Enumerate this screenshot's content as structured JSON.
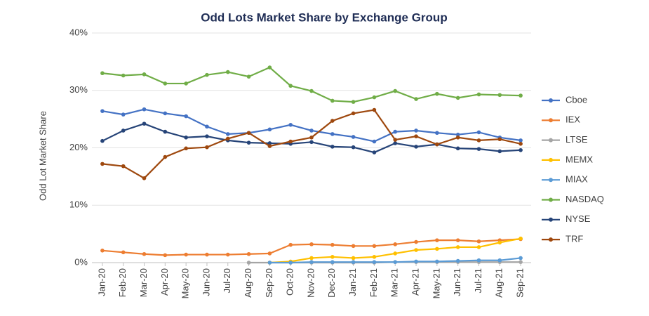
{
  "chart_data": {
    "type": "line",
    "title": "Odd Lots Market Share by Exchange Group",
    "y_label": "Odd Lot Market Share",
    "categories": [
      "Jan-20",
      "Feb-20",
      "Mar-20",
      "Apr-20",
      "May-20",
      "Jun-20",
      "Jul-20",
      "Aug-20",
      "Sep-20",
      "Oct-20",
      "Nov-20",
      "Dec-20",
      "Jan-21",
      "Feb-21",
      "Mar-21",
      "Apr-21",
      "May-21",
      "Jun-21",
      "Jul-21",
      "Aug-21",
      "Sep-21"
    ],
    "ylim": [
      0,
      40
    ],
    "yticks": [
      {
        "value": 0,
        "label": "0%"
      },
      {
        "value": 10,
        "label": "10%"
      },
      {
        "value": 20,
        "label": "20%"
      },
      {
        "value": 30,
        "label": "30%"
      },
      {
        "value": 40,
        "label": "40%"
      }
    ],
    "grid": true,
    "legend": "right",
    "series": [
      {
        "name": "Cboe",
        "color": "#4472c4",
        "values": [
          26.4,
          25.8,
          26.7,
          26.0,
          25.5,
          23.7,
          22.4,
          22.6,
          23.2,
          24.0,
          23.0,
          22.4,
          21.9,
          21.1,
          22.8,
          23.0,
          22.6,
          22.3,
          22.7,
          21.8,
          21.3
        ]
      },
      {
        "name": "IEX",
        "color": "#ed7d31",
        "values": [
          2.1,
          1.8,
          1.5,
          1.3,
          1.4,
          1.4,
          1.4,
          1.5,
          1.6,
          3.1,
          3.2,
          3.1,
          2.9,
          2.9,
          3.2,
          3.6,
          3.9,
          3.9,
          3.7,
          3.9,
          4.1
        ]
      },
      {
        "name": "LTSE",
        "color": "#a5a5a5",
        "values": [
          null,
          null,
          null,
          null,
          null,
          null,
          null,
          0.0,
          0.0,
          0.0,
          0.0,
          0.0,
          0.0,
          0.0,
          0.1,
          0.1,
          0.1,
          0.1,
          0.1,
          0.1,
          0.1
        ]
      },
      {
        "name": "MEMX",
        "color": "#ffc000",
        "values": [
          null,
          null,
          null,
          null,
          null,
          null,
          null,
          null,
          0.0,
          0.2,
          0.8,
          1.0,
          0.8,
          1.0,
          1.6,
          2.2,
          2.4,
          2.7,
          2.7,
          3.5,
          4.2
        ]
      },
      {
        "name": "MIAX",
        "color": "#5b9bd5",
        "values": [
          null,
          null,
          null,
          null,
          null,
          null,
          null,
          null,
          0.0,
          0.0,
          0.1,
          0.1,
          0.1,
          0.1,
          0.1,
          0.2,
          0.2,
          0.3,
          0.4,
          0.4,
          0.8
        ]
      },
      {
        "name": "NASDAQ",
        "color": "#70ad47",
        "values": [
          33.0,
          32.6,
          32.8,
          31.2,
          31.2,
          32.7,
          33.2,
          32.4,
          34.0,
          30.8,
          29.9,
          28.2,
          28.0,
          28.8,
          29.9,
          28.5,
          29.4,
          28.7,
          29.3,
          29.2,
          29.1
        ]
      },
      {
        "name": "NYSE",
        "color": "#264478",
        "values": [
          21.2,
          23.0,
          24.2,
          22.8,
          21.8,
          22.0,
          21.3,
          20.9,
          20.8,
          20.7,
          21.0,
          20.2,
          20.1,
          19.2,
          20.8,
          20.2,
          20.6,
          19.9,
          19.8,
          19.4,
          19.6
        ]
      },
      {
        "name": "TRF",
        "color": "#9e480e",
        "values": [
          17.2,
          16.8,
          14.7,
          18.4,
          19.9,
          20.1,
          21.6,
          22.6,
          20.3,
          21.1,
          21.8,
          24.7,
          26.0,
          26.6,
          21.4,
          22.0,
          20.6,
          21.8,
          21.3,
          21.5,
          20.7
        ]
      }
    ]
  }
}
